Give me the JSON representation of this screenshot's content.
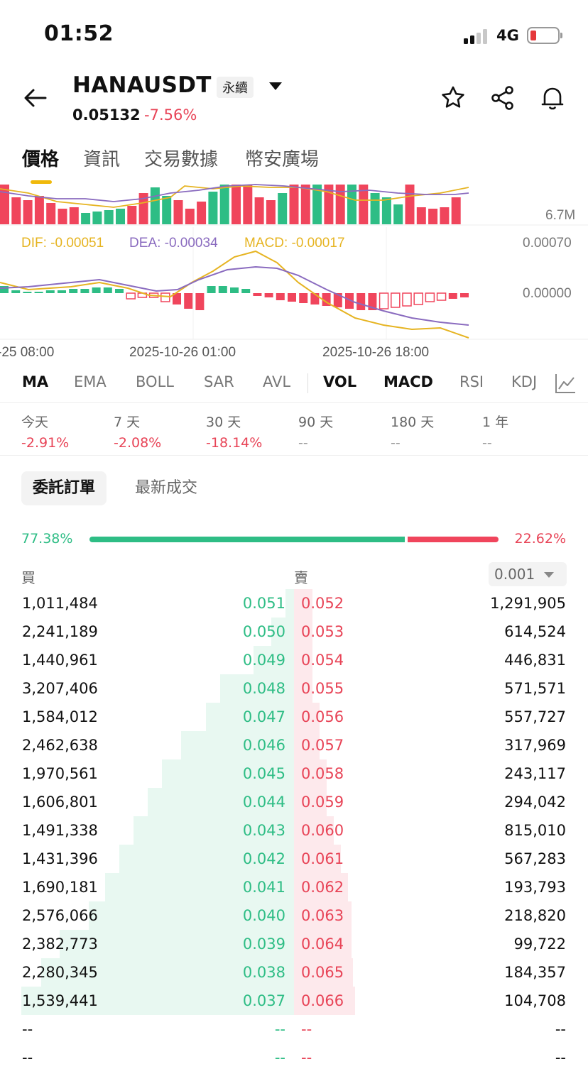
{
  "status_bar": {
    "time": "01:52",
    "network": "4G"
  },
  "header": {
    "symbol": "HANAUSDT",
    "contract_badge": "永續",
    "last_price": "0.05132",
    "change_pct": "-7.56%"
  },
  "tabs": [
    "價格",
    "資訊",
    "交易數據",
    "幣安廣場"
  ],
  "chart": {
    "volume_label": "6.7M",
    "macd_legend": {
      "dif": "DIF: -0.00051",
      "dea": "DEA: -0.00034",
      "macd": "MACD: -0.00017"
    },
    "macd_axis": {
      "top": "0.00070",
      "zero": "0.00000"
    },
    "time_labels": [
      "-25 08:00",
      "2025-10-26 01:00",
      "2025-10-26 18:00"
    ],
    "colors": {
      "up": "#2ebd85",
      "down": "#f0455c",
      "dif": "#e6b422",
      "dea": "#8a6bbf"
    }
  },
  "indicators": [
    "MA",
    "EMA",
    "BOLL",
    "SAR",
    "AVL",
    "VOL",
    "MACD",
    "RSI",
    "KDJ"
  ],
  "periods": [
    {
      "label": "今天",
      "value": "-2.91%"
    },
    {
      "label": "7 天",
      "value": "-2.08%"
    },
    {
      "label": "30 天",
      "value": "-18.14%"
    },
    {
      "label": "90 天",
      "value": "--"
    },
    {
      "label": "180 天",
      "value": "--"
    },
    {
      "label": "1 年",
      "value": "--"
    }
  ],
  "orderbook_tabs": {
    "active": "委託訂單",
    "other": "最新成交"
  },
  "ratio": {
    "buy": "77.38%",
    "sell": "22.62%",
    "buy_fraction": 0.7738
  },
  "orderbook_header": {
    "buy": "買",
    "sell": "賣",
    "precision": "0.001"
  },
  "orderbook": [
    {
      "bid_qty": "1,011,484",
      "bid_price": "0.051",
      "ask_price": "0.052",
      "ask_qty": "1,291,905"
    },
    {
      "bid_qty": "2,241,189",
      "bid_price": "0.050",
      "ask_price": "0.053",
      "ask_qty": "614,524"
    },
    {
      "bid_qty": "1,440,961",
      "bid_price": "0.049",
      "ask_price": "0.054",
      "ask_qty": "446,831"
    },
    {
      "bid_qty": "3,207,406",
      "bid_price": "0.048",
      "ask_price": "0.055",
      "ask_qty": "571,571"
    },
    {
      "bid_qty": "1,584,012",
      "bid_price": "0.047",
      "ask_price": "0.056",
      "ask_qty": "557,727"
    },
    {
      "bid_qty": "2,462,638",
      "bid_price": "0.046",
      "ask_price": "0.057",
      "ask_qty": "317,969"
    },
    {
      "bid_qty": "1,970,561",
      "bid_price": "0.045",
      "ask_price": "0.058",
      "ask_qty": "243,117"
    },
    {
      "bid_qty": "1,606,801",
      "bid_price": "0.044",
      "ask_price": "0.059",
      "ask_qty": "294,042"
    },
    {
      "bid_qty": "1,491,338",
      "bid_price": "0.043",
      "ask_price": "0.060",
      "ask_qty": "815,010"
    },
    {
      "bid_qty": "1,431,396",
      "bid_price": "0.042",
      "ask_price": "0.061",
      "ask_qty": "567,283"
    },
    {
      "bid_qty": "1,690,181",
      "bid_price": "0.041",
      "ask_price": "0.062",
      "ask_qty": "193,793"
    },
    {
      "bid_qty": "2,576,066",
      "bid_price": "0.040",
      "ask_price": "0.063",
      "ask_qty": "218,820"
    },
    {
      "bid_qty": "2,382,773",
      "bid_price": "0.039",
      "ask_price": "0.064",
      "ask_qty": "99,722"
    },
    {
      "bid_qty": "2,280,345",
      "bid_price": "0.038",
      "ask_price": "0.065",
      "ask_qty": "184,357"
    },
    {
      "bid_qty": "1,539,441",
      "bid_price": "0.037",
      "ask_price": "0.066",
      "ask_qty": "104,708"
    },
    {
      "bid_qty": "--",
      "bid_price": "--",
      "ask_price": "--",
      "ask_qty": "--"
    },
    {
      "bid_qty": "--",
      "bid_price": "--",
      "ask_price": "--",
      "ask_qty": "--"
    }
  ]
}
